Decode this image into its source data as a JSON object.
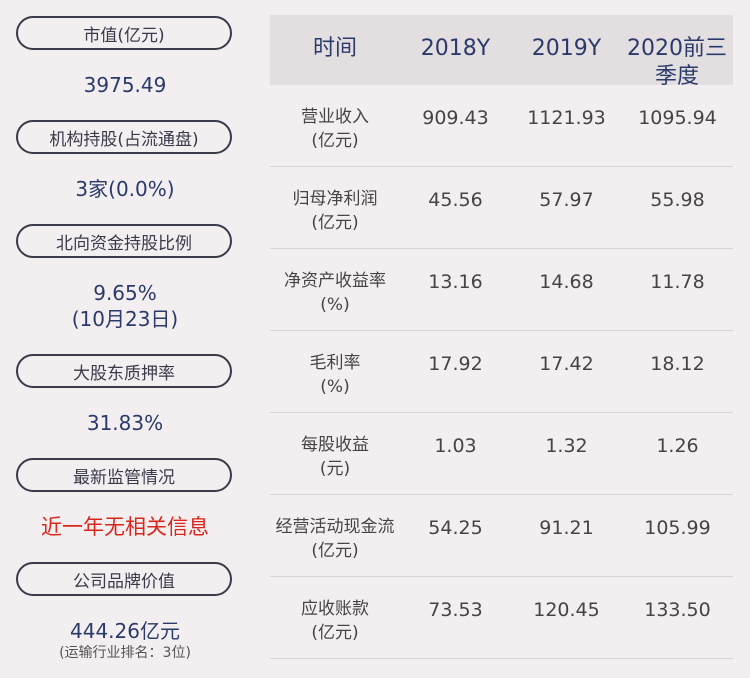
{
  "left_panel": [
    {
      "label": "市值(亿元)",
      "value": "3975.49"
    },
    {
      "label": "机构持股(占流通盘)",
      "value": "3家(0.0%)"
    },
    {
      "label": "北向资金持股比例",
      "value": "9.65%",
      "value2": "(10月23日)"
    },
    {
      "label": "大股东质押率",
      "value": "31.83%"
    },
    {
      "label": "最新监管情况",
      "value": "近一年无相关信息"
    },
    {
      "label": "公司品牌价值",
      "value": "444.26亿元",
      "note": "(运输行业排名：3位)"
    }
  ],
  "table": {
    "headers": [
      "时间",
      "2018Y",
      "2019Y",
      "2020前三季度"
    ],
    "rows": [
      {
        "label1": "营业收入",
        "label2": "(亿元)",
        "values": [
          "909.43",
          "1121.93",
          "1095.94"
        ]
      },
      {
        "label1": "归母净利润",
        "label2": "(亿元)",
        "values": [
          "45.56",
          "57.97",
          "55.98"
        ]
      },
      {
        "label1": "净资产收益率",
        "label2": "(%)",
        "values": [
          "13.16",
          "14.68",
          "11.78"
        ]
      },
      {
        "label1": "毛利率",
        "label2": "(%)",
        "values": [
          "17.92",
          "17.42",
          "18.12"
        ]
      },
      {
        "label1": "每股收益",
        "label2": "(元)",
        "values": [
          "1.03",
          "1.32",
          "1.26"
        ]
      },
      {
        "label1": "经营活动现金流",
        "label2": "(亿元)",
        "values": [
          "54.25",
          "91.21",
          "105.99"
        ]
      },
      {
        "label1": "应收账款",
        "label2": "(亿元)",
        "values": [
          "73.53",
          "120.45",
          "133.50"
        ]
      }
    ]
  }
}
